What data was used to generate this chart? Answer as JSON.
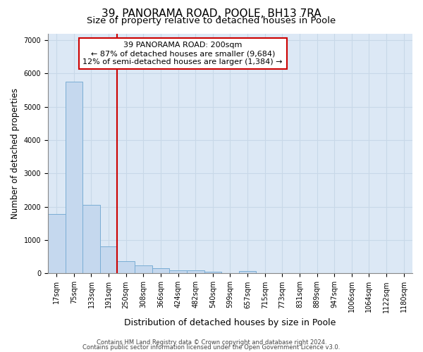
{
  "title": "39, PANORAMA ROAD, POOLE, BH13 7RA",
  "subtitle": "Size of property relative to detached houses in Poole",
  "xlabel": "Distribution of detached houses by size in Poole",
  "ylabel": "Number of detached properties",
  "categories": [
    "17sqm",
    "75sqm",
    "133sqm",
    "191sqm",
    "250sqm",
    "308sqm",
    "366sqm",
    "424sqm",
    "482sqm",
    "540sqm",
    "599sqm",
    "657sqm",
    "715sqm",
    "773sqm",
    "831sqm",
    "889sqm",
    "947sqm",
    "1006sqm",
    "1064sqm",
    "1122sqm",
    "1180sqm"
  ],
  "values": [
    1780,
    5750,
    2060,
    820,
    370,
    240,
    150,
    100,
    90,
    60,
    0,
    65,
    0,
    0,
    0,
    0,
    0,
    0,
    0,
    0,
    0
  ],
  "bar_color": "#c5d8ee",
  "bar_edge_color": "#7aadd4",
  "vline_color": "#cc0000",
  "vline_index": 3,
  "annotation_line1": "39 PANORAMA ROAD: 200sqm",
  "annotation_line2": "← 87% of detached houses are smaller (9,684)",
  "annotation_line3": "12% of semi-detached houses are larger (1,384) →",
  "annotation_box_color": "#cc0000",
  "ylim": [
    0,
    7200
  ],
  "yticks": [
    0,
    1000,
    2000,
    3000,
    4000,
    5000,
    6000,
    7000
  ],
  "grid_color": "#c8d8e8",
  "plot_bg_color": "#dce8f5",
  "footer_line1": "Contains HM Land Registry data © Crown copyright and database right 2024.",
  "footer_line2": "Contains public sector information licensed under the Open Government Licence v3.0.",
  "title_fontsize": 11,
  "subtitle_fontsize": 9.5,
  "tick_fontsize": 7,
  "ylabel_fontsize": 8.5,
  "xlabel_fontsize": 9,
  "annotation_fontsize": 8,
  "footer_fontsize": 6
}
